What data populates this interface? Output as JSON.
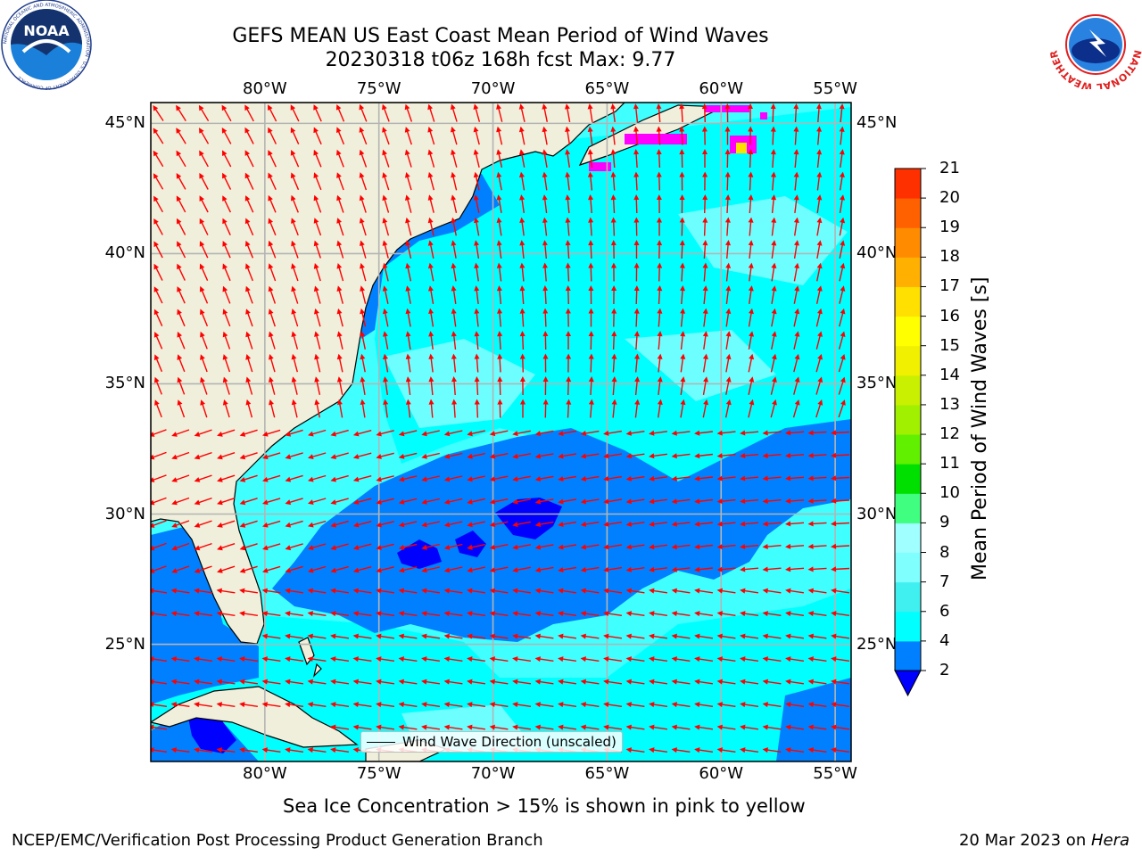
{
  "title": {
    "line1": "GEFS MEAN US East Coast Mean Period of Wind Waves",
    "line2": "20230318 t06z 168h fcst   Max: 9.77"
  },
  "map": {
    "lon_ticks": [
      "80°W",
      "75°W",
      "70°W",
      "65°W",
      "60°W",
      "55°W"
    ],
    "lon_values": [
      -80,
      -75,
      -70,
      -65,
      -60,
      -55
    ],
    "lat_ticks": [
      "45°N",
      "40°N",
      "35°N",
      "30°N",
      "25°N"
    ],
    "lat_values": [
      45,
      40,
      35,
      30,
      25
    ],
    "extent": {
      "lon": [
        -85,
        -54.3
      ],
      "lat": [
        20.5,
        45.8
      ]
    },
    "grid": true,
    "arrow_color": "#ff0000",
    "land_color": "#efefdb",
    "legend_label": "Wind Wave Direction (unscaled)"
  },
  "colorbar": {
    "label": "Mean Period of Wind Waves [s]",
    "tick_labels": [
      "2",
      "4",
      "6",
      "7",
      "8",
      "9",
      "10",
      "11",
      "12",
      "13",
      "14",
      "15",
      "16",
      "17",
      "18",
      "19",
      "20",
      "21"
    ],
    "levels": [
      2,
      4,
      6,
      7,
      8,
      9,
      10,
      11,
      12,
      13,
      14,
      15,
      16,
      17,
      18,
      19,
      20,
      21
    ],
    "colors": [
      "#0080ff",
      "#00ffff",
      "#40f0f0",
      "#80ffff",
      "#a0ffff",
      "#40ff80",
      "#00e000",
      "#60f000",
      "#a0f000",
      "#c8f000",
      "#f0f000",
      "#ffff00",
      "#ffe000",
      "#ffb000",
      "#ff8c00",
      "#ff6000",
      "#ff3000",
      "#ff0000"
    ],
    "under_color": "#0000ff"
  },
  "fields": {
    "colors": {
      "blue_2_4": "#0080ff",
      "dark_blue_under_2": "#0000ff",
      "cyan_4_6": "#00ffff",
      "light_cyan_6_7": "#40ffff",
      "ice_pink": "#ff00ff",
      "ice_yellow": "#ffe000"
    }
  },
  "notes": {
    "sea_ice": "Sea Ice Concentration > 15% is shown in pink to yellow"
  },
  "footer": {
    "left": "NCEP/EMC/Verification Post Processing Product Generation Branch",
    "right_date": "20 Mar 2023 on ",
    "right_machine": "Hera"
  },
  "logos": {
    "noaa_text": "NOAA",
    "noaa_ring_text": "NATIONAL OCEANIC AND ATMOSPHERIC ADMINISTRATION · U.S. DEPARTMENT OF COMMERCE",
    "nws_ring_text": "NATIONAL WEATHER SERVICE"
  }
}
